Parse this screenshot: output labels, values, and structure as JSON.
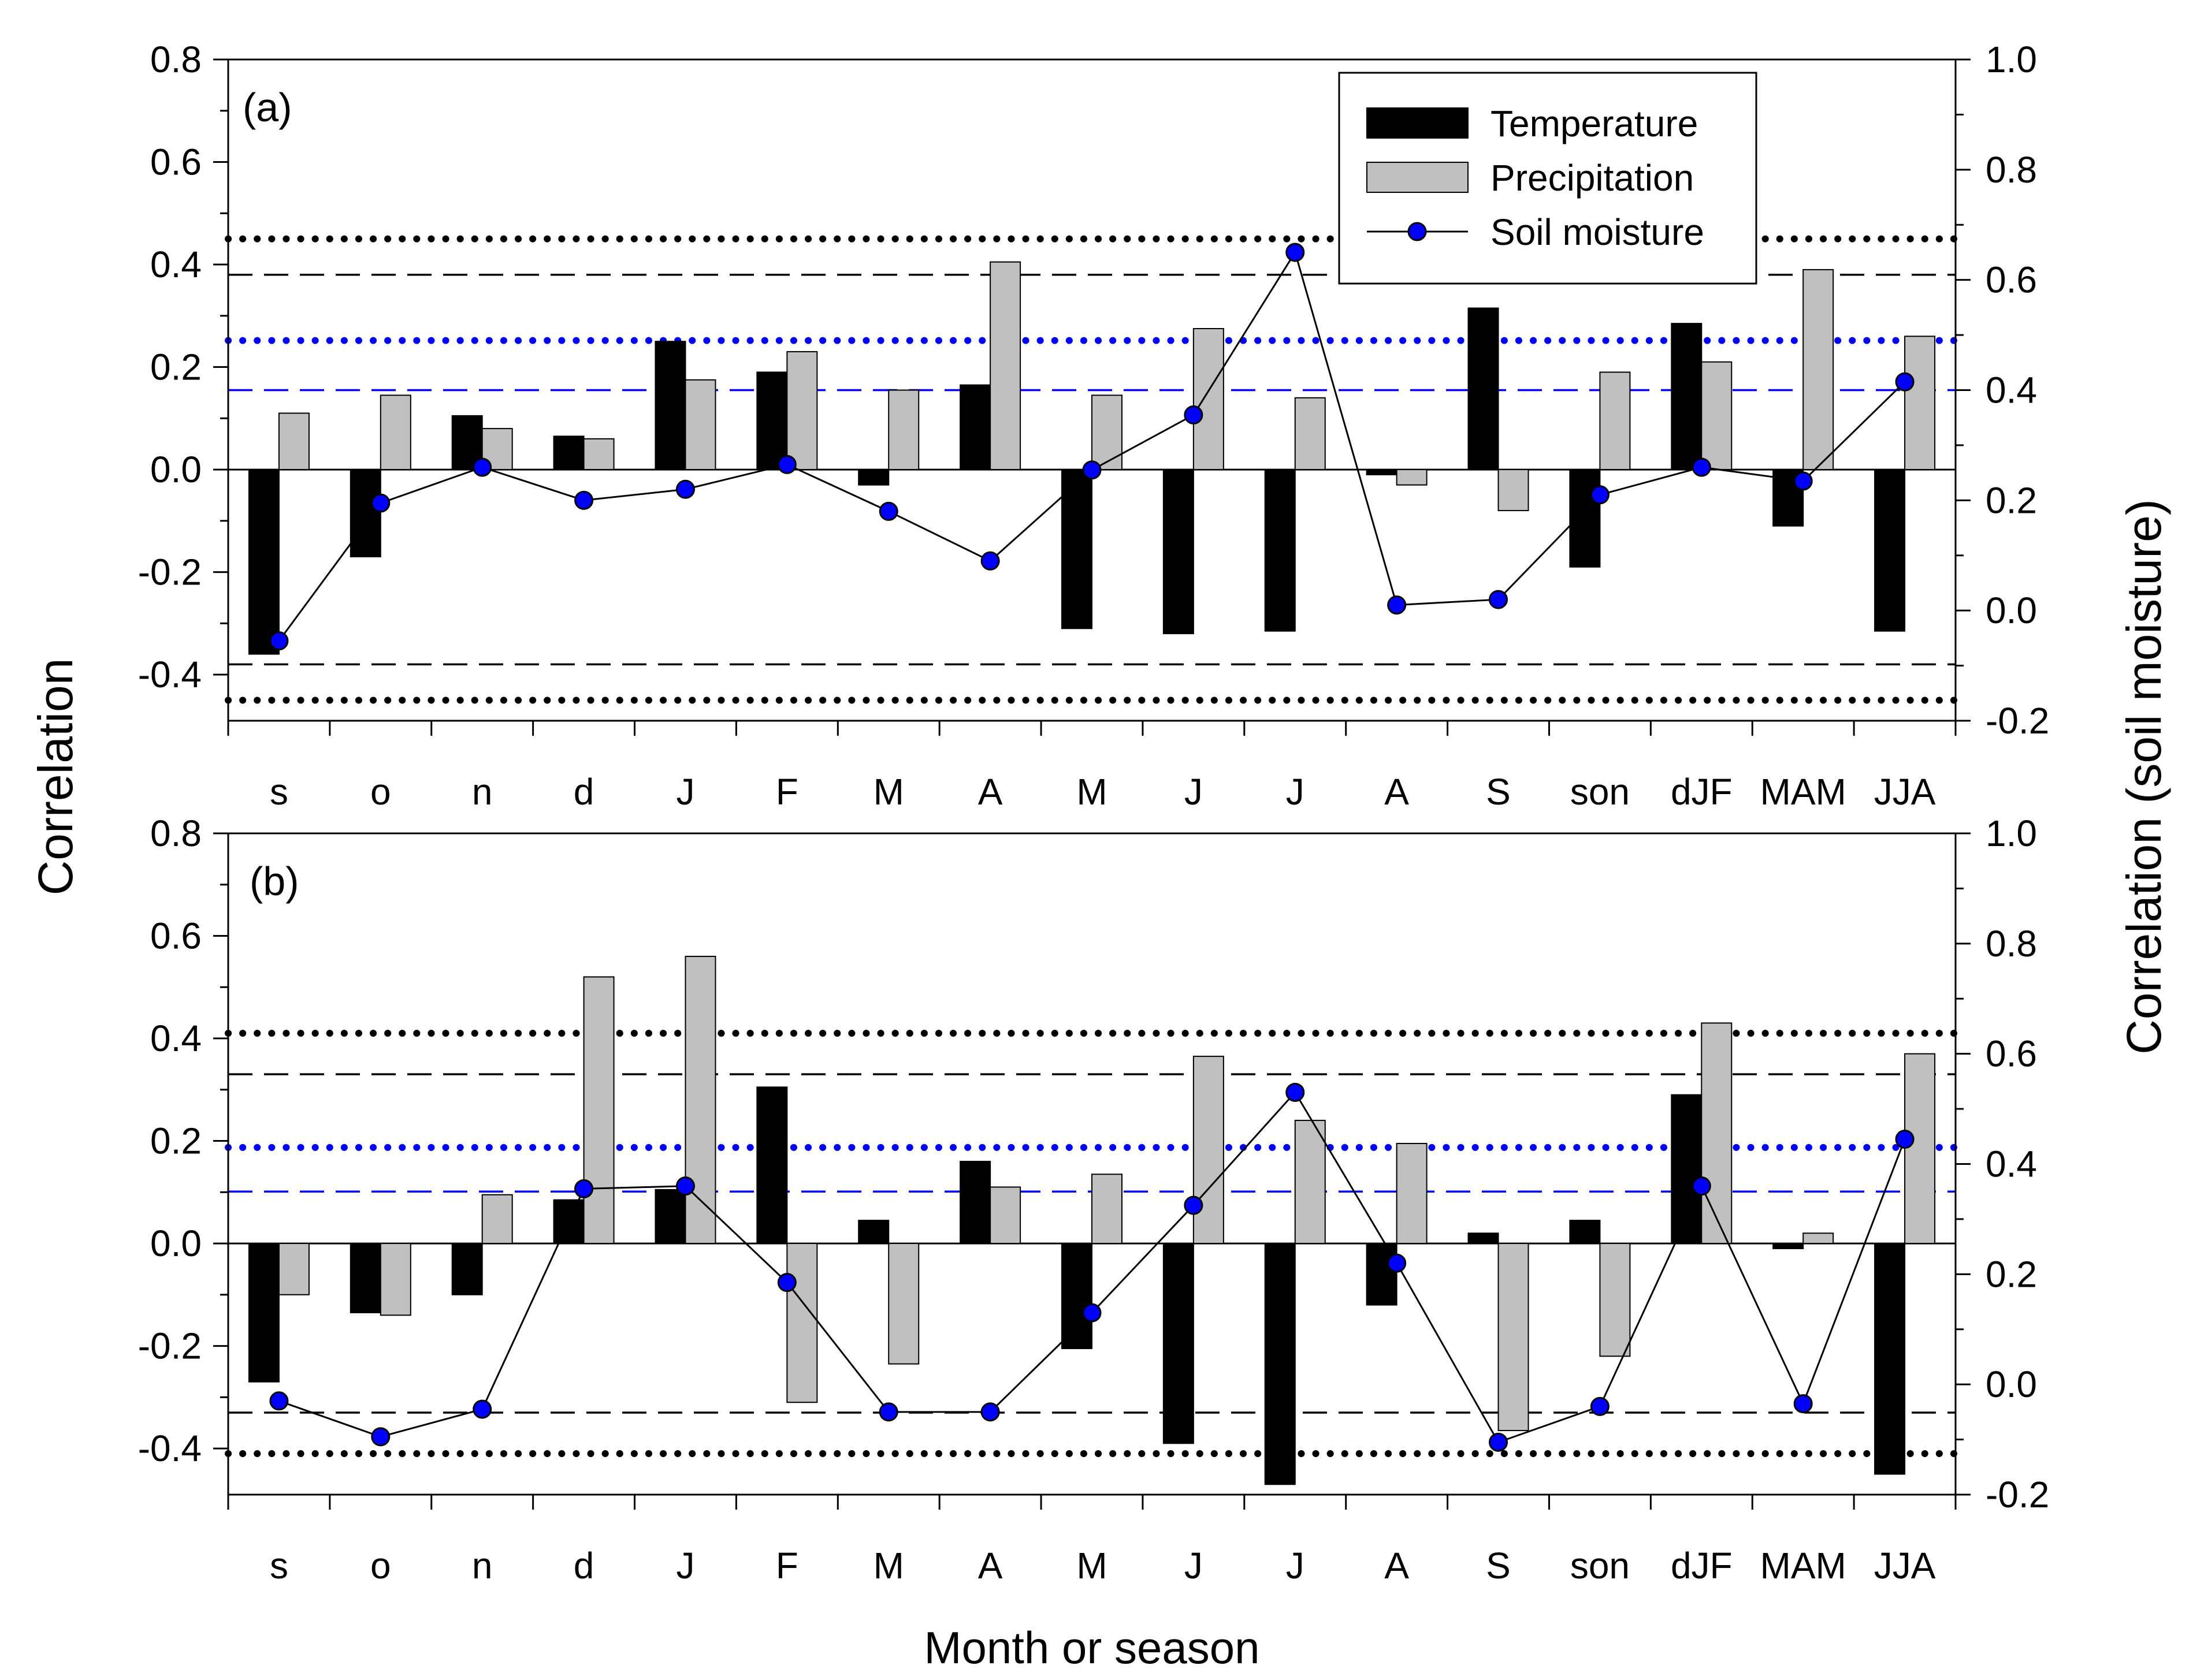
{
  "figure": {
    "ylabel_left": "Correlation",
    "ylabel_right": "Correlation (soil moisture)",
    "xlabel": "Month or season",
    "legend": {
      "placement": "top-right",
      "items": [
        {
          "label": "Temperature",
          "kind": "bar",
          "color": "#000000"
        },
        {
          "label": "Precipitation",
          "kind": "bar",
          "color": "#c0c0c0"
        },
        {
          "label": "Soil moisture",
          "kind": "line-marker",
          "color": "#0000ff"
        }
      ]
    },
    "colors": {
      "temperature": "#000000",
      "precipitation": "#c0c0c0",
      "soil_marker": "#0000ff",
      "threshold_black": "#000000",
      "threshold_blue": "#0000ff"
    }
  },
  "chart_data": [
    {
      "type": "bar",
      "panel_label": "(a)",
      "categories": [
        "s",
        "o",
        "n",
        "d",
        "J",
        "F",
        "M",
        "A",
        "M",
        "J",
        "J",
        "A",
        "S",
        "son",
        "dJF",
        "MAM",
        "JJA"
      ],
      "ylim_left": [
        -0.49,
        0.8
      ],
      "yticks_left": [
        "0.8",
        "0.6",
        "0.4",
        "0.2",
        "0.0",
        "-0.2",
        "-0.4"
      ],
      "ylim_right": [
        -0.2,
        1.0
      ],
      "yticks_right": [
        "1.0",
        "0.8",
        "0.6",
        "0.4",
        "0.2",
        "0.0",
        "-0.2"
      ],
      "series": [
        {
          "name": "Temperature",
          "axis": "left",
          "values": [
            -0.36,
            -0.17,
            0.105,
            0.065,
            0.25,
            0.19,
            -0.03,
            0.165,
            -0.31,
            -0.32,
            -0.315,
            -0.01,
            0.315,
            -0.19,
            0.285,
            -0.11,
            -0.315
          ]
        },
        {
          "name": "Precipitation",
          "axis": "left",
          "values": [
            0.11,
            0.145,
            0.08,
            0.06,
            0.175,
            0.23,
            0.155,
            0.405,
            0.145,
            0.275,
            0.14,
            -0.03,
            -0.08,
            0.19,
            0.21,
            0.39,
            0.26
          ]
        },
        {
          "name": "Soil moisture",
          "axis": "right",
          "values": [
            -0.055,
            0.195,
            0.26,
            0.2,
            0.22,
            0.265,
            0.18,
            0.09,
            0.255,
            0.355,
            0.65,
            0.01,
            0.02,
            0.21,
            0.26,
            0.235,
            0.415
          ]
        }
      ],
      "thresholds": [
        {
          "axis": "left",
          "value": 0.45,
          "style": "dotted",
          "color": "#000000"
        },
        {
          "axis": "left",
          "value": 0.38,
          "style": "dashed",
          "color": "#000000"
        },
        {
          "axis": "left",
          "value": -0.38,
          "style": "dashed",
          "color": "#000000"
        },
        {
          "axis": "left",
          "value": -0.45,
          "style": "dotted",
          "color": "#000000"
        },
        {
          "axis": "right",
          "value": 0.49,
          "style": "dotted",
          "color": "#0000ff"
        },
        {
          "axis": "right",
          "value": 0.4,
          "style": "dashed",
          "color": "#0000ff"
        }
      ]
    },
    {
      "type": "bar",
      "panel_label": "(b)",
      "categories": [
        "s",
        "o",
        "n",
        "d",
        "J",
        "F",
        "M",
        "A",
        "M",
        "J",
        "J",
        "A",
        "S",
        "son",
        "dJF",
        "MAM",
        "JJA"
      ],
      "ylim_left": [
        -0.49,
        0.8
      ],
      "yticks_left": [
        "0.8",
        "0.6",
        "0.4",
        "0.2",
        "0.0",
        "-0.2",
        "-0.4"
      ],
      "ylim_right": [
        -0.2,
        1.0
      ],
      "yticks_right": [
        "1.0",
        "0.8",
        "0.6",
        "0.4",
        "0.2",
        "0.0",
        "-0.2"
      ],
      "series": [
        {
          "name": "Temperature",
          "axis": "left",
          "values": [
            -0.27,
            -0.135,
            -0.1,
            0.085,
            0.105,
            0.305,
            0.045,
            0.16,
            -0.205,
            -0.39,
            -0.47,
            -0.12,
            0.02,
            0.045,
            0.29,
            -0.01,
            -0.45
          ]
        },
        {
          "name": "Precipitation",
          "axis": "left",
          "values": [
            -0.1,
            -0.14,
            0.095,
            0.52,
            0.56,
            -0.31,
            -0.235,
            0.11,
            0.135,
            0.365,
            0.24,
            0.195,
            -0.365,
            -0.22,
            0.43,
            0.02,
            0.37
          ]
        },
        {
          "name": "Soil moisture",
          "axis": "right",
          "values": [
            -0.03,
            -0.095,
            -0.045,
            0.355,
            0.36,
            0.185,
            -0.05,
            -0.05,
            0.13,
            0.325,
            0.53,
            0.22,
            -0.105,
            -0.04,
            0.36,
            -0.035,
            0.445
          ]
        }
      ],
      "thresholds": [
        {
          "axis": "left",
          "value": 0.41,
          "style": "dotted",
          "color": "#000000"
        },
        {
          "axis": "left",
          "value": 0.33,
          "style": "dashed",
          "color": "#000000"
        },
        {
          "axis": "left",
          "value": -0.33,
          "style": "dashed",
          "color": "#000000"
        },
        {
          "axis": "left",
          "value": -0.41,
          "style": "dotted",
          "color": "#000000"
        },
        {
          "axis": "right",
          "value": 0.43,
          "style": "dotted",
          "color": "#0000ff"
        },
        {
          "axis": "right",
          "value": 0.35,
          "style": "dashed",
          "color": "#0000ff"
        }
      ]
    }
  ]
}
